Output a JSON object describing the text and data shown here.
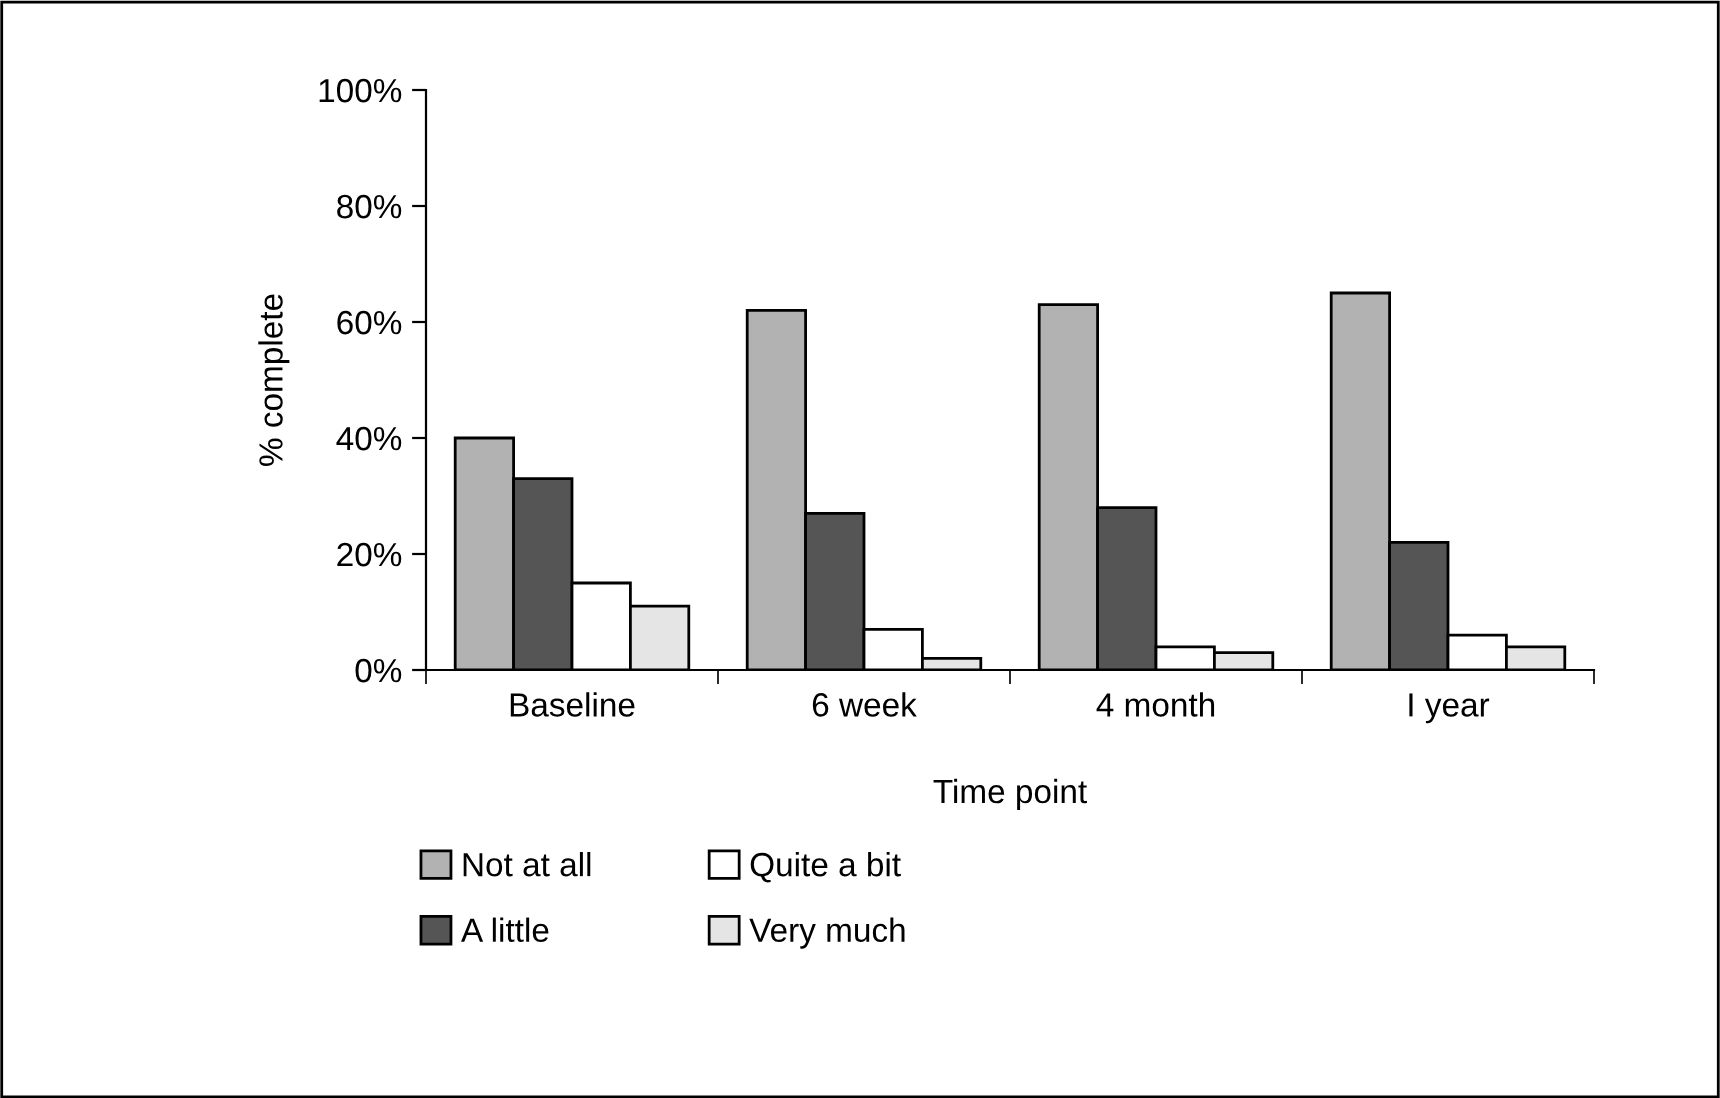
{
  "chart_data": {
    "type": "bar",
    "xlabel": "Time point",
    "ylabel": "% complete",
    "categories": [
      "Baseline",
      "6 week",
      "4 month",
      "I year"
    ],
    "series": [
      {
        "name": "Not at all",
        "color": "#b2b2b2",
        "values": [
          40,
          62,
          63,
          65
        ]
      },
      {
        "name": "A little",
        "color": "#555555",
        "values": [
          33,
          27,
          28,
          22
        ]
      },
      {
        "name": "Quite a bit",
        "color": "#ffffff",
        "values": [
          15,
          7,
          4,
          6
        ]
      },
      {
        "name": "Very much",
        "color": "#e5e5e5",
        "values": [
          11,
          2,
          3,
          4
        ]
      }
    ],
    "ylim": [
      0,
      100
    ],
    "yticks": [
      {
        "value": 0,
        "label": "0%"
      },
      {
        "value": 20,
        "label": "20%"
      },
      {
        "value": 40,
        "label": "40%"
      },
      {
        "value": 60,
        "label": "60%"
      },
      {
        "value": 80,
        "label": "80%"
      },
      {
        "value": 100,
        "label": "100%"
      }
    ],
    "grid": false,
    "legend": "bottom"
  }
}
